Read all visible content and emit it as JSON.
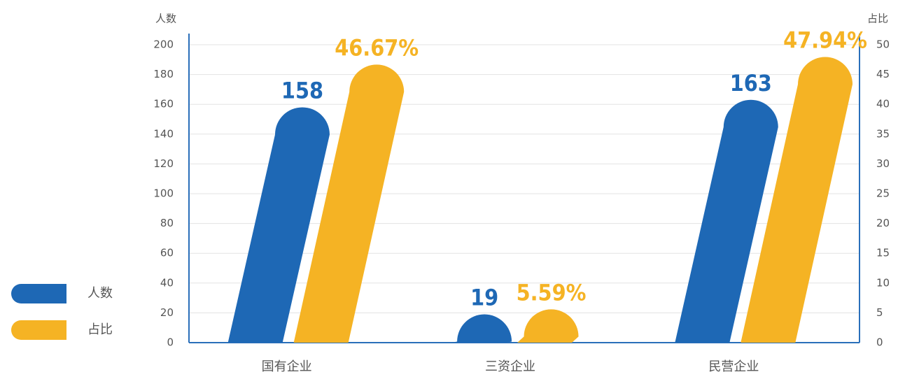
{
  "chart_data": {
    "type": "bar",
    "y_label": "人数",
    "y2_label": "占比",
    "categories": [
      "国有企业",
      "三资企业",
      "民营企业"
    ],
    "series": [
      {
        "name": "人数",
        "color": "#1e68b5",
        "values": [
          158,
          19,
          163
        ]
      },
      {
        "name": "占比",
        "color": "#f5b324",
        "axis": "y2",
        "values": [
          46.67,
          5.59,
          47.94
        ],
        "value_labels": [
          "46.67%",
          "5.59%",
          "47.94%"
        ]
      }
    ],
    "ylim": [
      0,
      200
    ],
    "yticks": [
      0,
      20,
      40,
      60,
      80,
      100,
      120,
      140,
      160,
      180,
      200
    ],
    "y2lim": [
      0,
      50
    ],
    "y2ticks": [
      0,
      5,
      10,
      15,
      20,
      25,
      30,
      35,
      40,
      45,
      50
    ],
    "grid": true,
    "legend": "left"
  }
}
